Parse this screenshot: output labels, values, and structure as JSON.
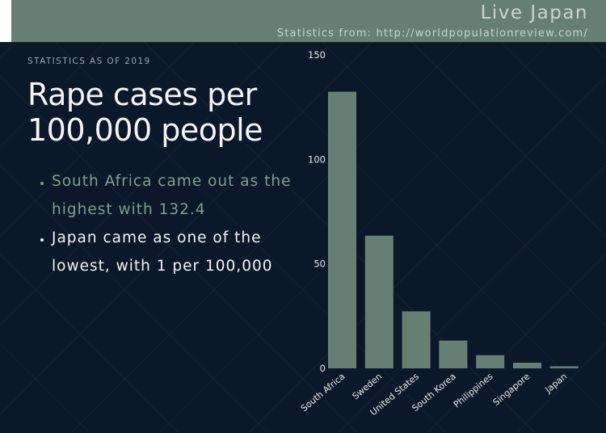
{
  "header": {
    "brand": "Live Japan",
    "source": "Statistics from: http://worldpopulationreview.com/"
  },
  "eyebrow": "STATISTICS AS OF 2019",
  "headline": "Rape cases per 100,000 people",
  "bullets": [
    "South Africa came out as the highest with 132.4",
    "Japan came as one of the lowest, with 1 per 100,000"
  ],
  "colors": {
    "background": "#0b1829",
    "bar": "#677f73",
    "header": "#677f73",
    "muted_text": "#7f9e91"
  },
  "chart_data": {
    "type": "bar",
    "title": "",
    "xlabel": "",
    "ylabel": "",
    "categories": [
      "South Africa",
      "Sweden",
      "United States",
      "South Korea",
      "Philippines",
      "Singapore",
      "Japan"
    ],
    "values": [
      132.4,
      63.5,
      27.3,
      13.3,
      6.3,
      2.7,
      1
    ],
    "ylim": [
      0,
      150
    ],
    "yticks": [
      0,
      50,
      100,
      150
    ],
    "grid": false,
    "legend": "none"
  }
}
